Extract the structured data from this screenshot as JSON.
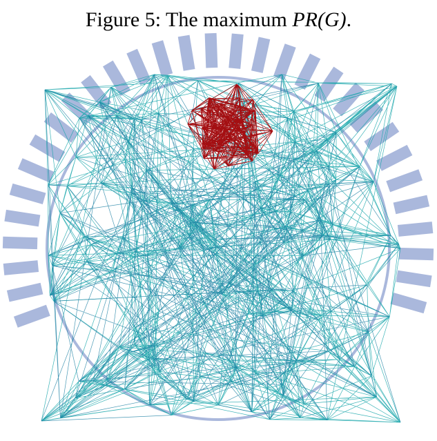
{
  "caption": {
    "label": "Figure 5:",
    "text": "The maximum",
    "math": "PR(G)",
    "end": "."
  }
}
